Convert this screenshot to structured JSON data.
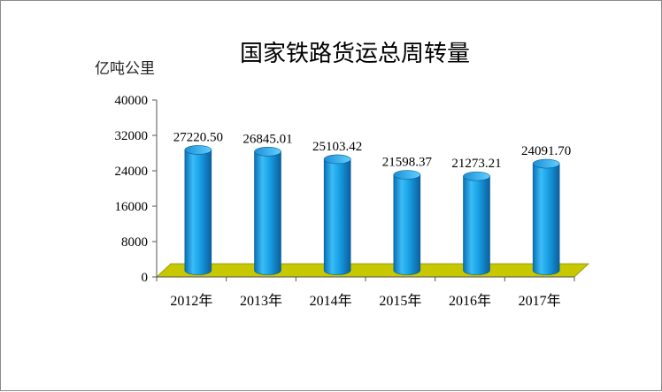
{
  "chart_data": {
    "type": "bar",
    "title": "国家铁路货运总周转量",
    "ylabel": "亿吨公里",
    "xlabel": "",
    "categories": [
      "2012年",
      "2013年",
      "2014年",
      "2015年",
      "2016年",
      "2017年"
    ],
    "values": [
      27220.5,
      26845.01,
      25103.42,
      21598.37,
      21273.21,
      24091.7
    ],
    "value_labels": [
      "27220.50",
      "26845.01",
      "25103.42",
      "21598.37",
      "21273.21",
      "24091.70"
    ],
    "ylim": [
      0,
      40000
    ],
    "yticks": [
      "0",
      "8000",
      "16000",
      "24000",
      "32000",
      "40000"
    ],
    "ytick_values": [
      0,
      8000,
      16000,
      24000,
      32000,
      40000
    ],
    "grid": false,
    "legend": "none",
    "colors": {
      "bar": "#1aa3e8",
      "floor": "#c8c800"
    }
  }
}
